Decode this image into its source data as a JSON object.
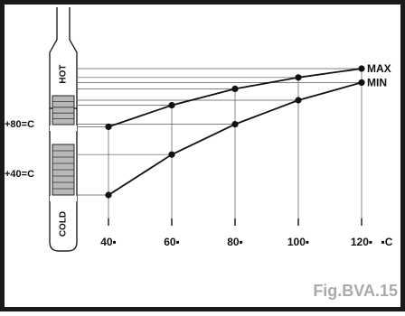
{
  "chart_data": {
    "type": "line",
    "x": [
      40,
      60,
      80,
      100,
      120
    ],
    "x_tick_labels": [
      "40▪",
      "60▪",
      "80▪",
      "100▪",
      "120▪"
    ],
    "x_unit_label": "▪C",
    "series": [
      {
        "name": "MAX",
        "values": [
          0.54,
          0.71,
          0.84,
          0.93,
          1.0
        ]
      },
      {
        "name": "MIN",
        "values": [
          0.0,
          0.32,
          0.56,
          0.75,
          0.89
        ]
      }
    ],
    "gauge": {
      "top_label": "HOT",
      "bottom_label": "COLD",
      "marks": [
        "+80=C",
        "+40=C"
      ]
    },
    "figure_label": "Fig.BVA.15"
  },
  "colors": {
    "line": "#111111",
    "grid": "#555555",
    "shade": "#b8b8b8",
    "caption": "#aaaaaa",
    "frame": "#1a1a1a"
  }
}
